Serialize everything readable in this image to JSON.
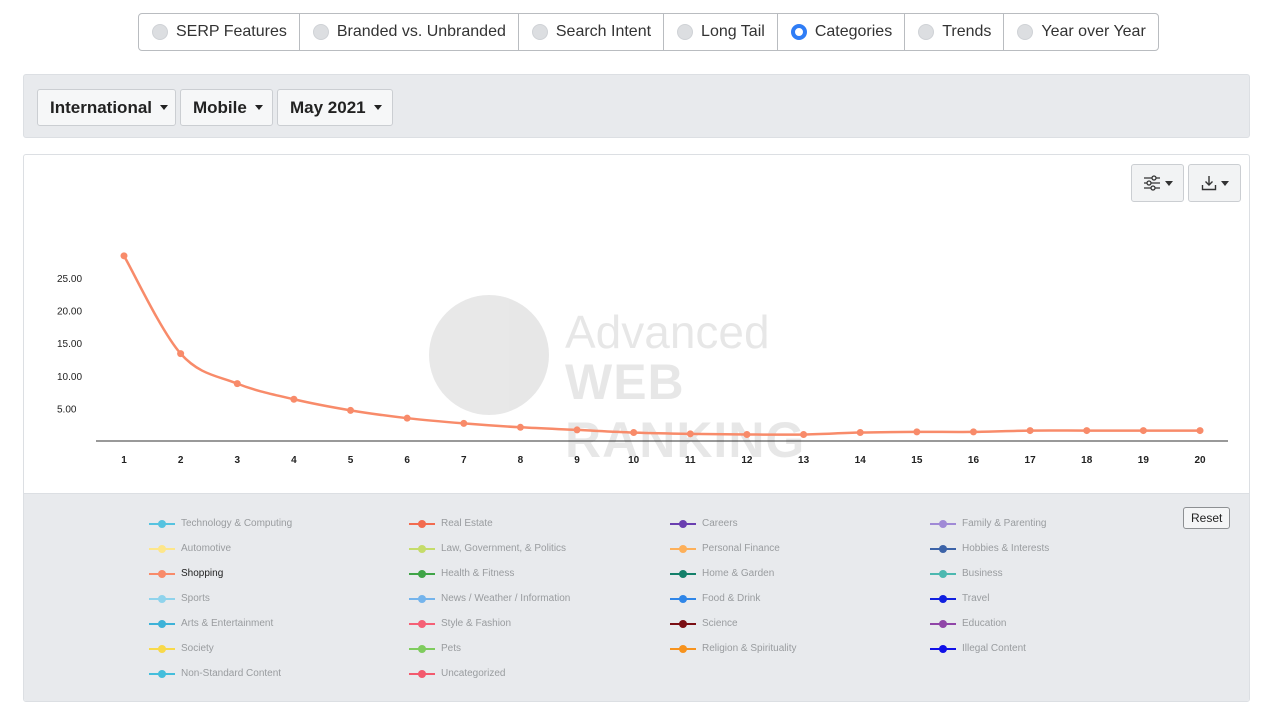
{
  "tabs": [
    {
      "label": "SERP Features",
      "selected": false
    },
    {
      "label": "Branded vs. Unbranded",
      "selected": false
    },
    {
      "label": "Search Intent",
      "selected": false
    },
    {
      "label": "Long Tail",
      "selected": false
    },
    {
      "label": "Categories",
      "selected": true
    },
    {
      "label": "Trends",
      "selected": false
    },
    {
      "label": "Year over Year",
      "selected": false
    }
  ],
  "filters": {
    "location": "International",
    "device": "Mobile",
    "date": "May 2021"
  },
  "toolbar": {
    "settings_icon": "sliders-icon",
    "download_icon": "download-icon"
  },
  "watermark": {
    "line1": "Advanced",
    "line2": "WEB RANKING"
  },
  "chart_data": {
    "type": "line",
    "x": [
      1,
      2,
      3,
      4,
      5,
      6,
      7,
      8,
      9,
      10,
      11,
      12,
      13,
      14,
      15,
      16,
      17,
      18,
      19,
      20
    ],
    "series": [
      {
        "name": "Shopping",
        "color": "#f88b6a",
        "values": [
          28.4,
          13.4,
          8.8,
          6.4,
          4.7,
          3.5,
          2.7,
          2.1,
          1.7,
          1.3,
          1.1,
          1.0,
          1.0,
          1.3,
          1.4,
          1.4,
          1.6,
          1.6,
          1.6,
          1.6
        ]
      }
    ],
    "yticks": [
      "25.00",
      "20.00",
      "15.00",
      "10.00",
      "5.00"
    ],
    "ytick_values": [
      25,
      20,
      15,
      10,
      5
    ],
    "ylim": [
      0,
      30
    ],
    "xlim": [
      1,
      20
    ],
    "grid": false,
    "legend_position": "bottom"
  },
  "legend": {
    "reset_label": "Reset",
    "items": [
      {
        "label": "Technology & Computing",
        "color": "#56c3e0",
        "active": false
      },
      {
        "label": "Real Estate",
        "color": "#f26b4f",
        "active": false
      },
      {
        "label": "Careers",
        "color": "#6a3fb0",
        "active": false
      },
      {
        "label": "Family & Parenting",
        "color": "#a08ad6",
        "active": false
      },
      {
        "label": "Automotive",
        "color": "#fde68a",
        "active": false
      },
      {
        "label": "Law, Government, & Politics",
        "color": "#c5dc6a",
        "active": false
      },
      {
        "label": "Personal Finance",
        "color": "#fdb05a",
        "active": false
      },
      {
        "label": "Hobbies & Interests",
        "color": "#3c63a8",
        "active": false
      },
      {
        "label": "Shopping",
        "color": "#f88b6a",
        "active": true
      },
      {
        "label": "Health & Fitness",
        "color": "#3fa447",
        "active": false
      },
      {
        "label": "Home & Garden",
        "color": "#14806a",
        "active": false
      },
      {
        "label": "Business",
        "color": "#4cb8b0",
        "active": false
      },
      {
        "label": "Sports",
        "color": "#8fd3ec",
        "active": false
      },
      {
        "label": "News / Weather / Information",
        "color": "#74b4ec",
        "active": false
      },
      {
        "label": "Food & Drink",
        "color": "#2f86e8",
        "active": false
      },
      {
        "label": "Travel",
        "color": "#1020e0",
        "active": false
      },
      {
        "label": "Arts & Entertainment",
        "color": "#3db2d8",
        "active": false
      },
      {
        "label": "Style & Fashion",
        "color": "#f56076",
        "active": false
      },
      {
        "label": "Science",
        "color": "#7a0f14",
        "active": false
      },
      {
        "label": "Education",
        "color": "#9046a8",
        "active": false
      },
      {
        "label": "Society",
        "color": "#f8d94a",
        "active": false
      },
      {
        "label": "Pets",
        "color": "#7fcc5e",
        "active": false
      },
      {
        "label": "Religion & Spirituality",
        "color": "#f7931e",
        "active": false
      },
      {
        "label": "Illegal Content",
        "color": "#1010e8",
        "active": false
      },
      {
        "label": "Non-Standard Content",
        "color": "#44bedc",
        "active": false
      },
      {
        "label": "Uncategorized",
        "color": "#f35a6e",
        "active": false
      }
    ]
  }
}
